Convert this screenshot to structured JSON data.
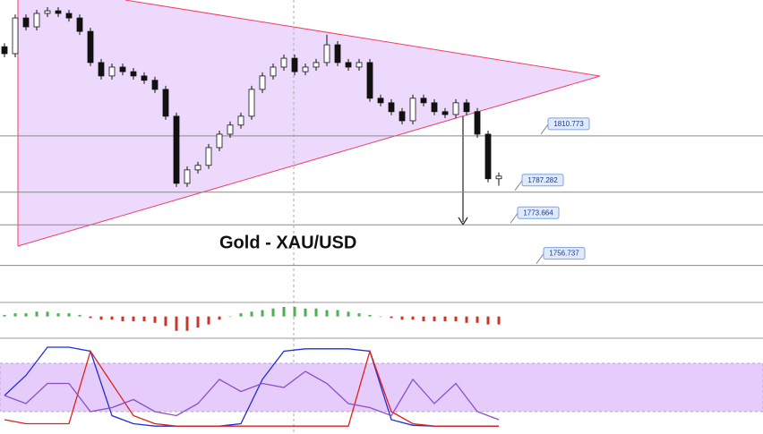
{
  "chart_data": {
    "type": "candlestick",
    "title": "Gold - XAU/USD",
    "ylim": [
      1748,
      1867.5
    ],
    "levels": [
      1810.773,
      1787.282,
      1773.664,
      1756.737
    ],
    "open": [
      1848.0,
      1845.1,
      1860.0,
      1856.3,
      1861.9,
      1863.0,
      1861.9,
      1860.0,
      1854.4,
      1841.4,
      1835.8,
      1839.5,
      1837.6,
      1835.8,
      1834.0,
      1830.2,
      1819.0,
      1791.0,
      1796.6,
      1798.5,
      1805.9,
      1811.5,
      1815.3,
      1819.0,
      1830.2,
      1835.8,
      1839.5,
      1843.2,
      1837.6,
      1839.5,
      1841.4,
      1848.8,
      1841.4,
      1839.5,
      1841.4,
      1826.5,
      1824.6,
      1820.9,
      1817.1,
      1826.5,
      1824.6,
      1820.9,
      1819.7,
      1824.6,
      1820.9,
      1811.5,
      1792.9
    ],
    "high": [
      1849.5,
      1861.5,
      1861.5,
      1863.4,
      1864.5,
      1864.5,
      1863.4,
      1861.5,
      1855.9,
      1842.9,
      1841.0,
      1841.0,
      1839.1,
      1837.3,
      1835.5,
      1831.7,
      1820.5,
      1798.1,
      1800.0,
      1807.4,
      1813.0,
      1816.8,
      1820.5,
      1831.7,
      1837.3,
      1841.0,
      1844.7,
      1844.7,
      1841.0,
      1842.9,
      1853.0,
      1850.3,
      1842.9,
      1842.9,
      1842.9,
      1828.0,
      1826.1,
      1822.4,
      1828.0,
      1828.0,
      1826.1,
      1822.4,
      1826.1,
      1826.1,
      1822.4,
      1813.0,
      1795.5
    ],
    "low": [
      1843.6,
      1843.6,
      1854.8,
      1854.8,
      1860.4,
      1860.4,
      1858.5,
      1852.9,
      1839.9,
      1834.3,
      1834.3,
      1836.1,
      1834.3,
      1832.5,
      1828.7,
      1817.5,
      1789.5,
      1789.5,
      1795.1,
      1797.0,
      1804.4,
      1810.0,
      1813.8,
      1817.5,
      1828.7,
      1834.3,
      1838.0,
      1836.1,
      1836.1,
      1838.0,
      1839.9,
      1839.9,
      1838.0,
      1838.0,
      1825.0,
      1823.1,
      1819.4,
      1815.6,
      1815.6,
      1823.1,
      1819.4,
      1818.2,
      1818.2,
      1819.4,
      1810.0,
      1791.4,
      1790.0
    ],
    "close": [
      1845.1,
      1860.0,
      1856.3,
      1861.9,
      1863.0,
      1861.9,
      1860.0,
      1854.4,
      1841.4,
      1835.8,
      1839.5,
      1837.6,
      1835.8,
      1834.0,
      1830.2,
      1819.0,
      1791.0,
      1796.6,
      1798.5,
      1805.9,
      1811.5,
      1815.3,
      1819.0,
      1830.2,
      1835.8,
      1839.5,
      1843.2,
      1837.6,
      1839.5,
      1841.4,
      1848.8,
      1841.4,
      1839.5,
      1841.4,
      1826.5,
      1824.6,
      1820.9,
      1817.1,
      1826.5,
      1824.6,
      1820.9,
      1819.7,
      1824.6,
      1820.9,
      1811.5,
      1792.9,
      1794.0
    ],
    "histogram": {
      "ylim": [
        -12,
        6
      ],
      "colors": [
        "#4caf50",
        "#c0392b"
      ],
      "values": [
        1,
        2,
        2,
        3,
        3,
        2,
        2,
        1,
        -1,
        -2,
        -2,
        -3,
        -3,
        -3,
        -4,
        -6,
        -9,
        -9,
        -7,
        -5,
        -2,
        0,
        2,
        3,
        4,
        5,
        6,
        6,
        5,
        5,
        4,
        4,
        3,
        2,
        1,
        0,
        -1,
        -2,
        -2,
        -3,
        -3,
        -3,
        -3,
        -4,
        -4,
        -5,
        -5
      ]
    },
    "oscillator": {
      "ylim": [
        0,
        100
      ],
      "band": [
        20,
        80
      ],
      "series": [
        {
          "color": "#1f2fd6",
          "values": [
            40,
            65,
            100,
            100,
            95,
            15,
            5,
            2,
            2,
            2,
            2,
            5,
            60,
            95,
            98,
            98,
            98,
            95,
            10,
            3,
            2,
            2,
            2,
            2
          ]
        },
        {
          "color": "#e0201c",
          "values": [
            10,
            5,
            5,
            5,
            95,
            55,
            15,
            5,
            2,
            2,
            2,
            2,
            2,
            2,
            2,
            2,
            2,
            95,
            20,
            5,
            2,
            2,
            2,
            2
          ]
        },
        {
          "color": "#8a4fc9",
          "values": [
            40,
            30,
            55,
            55,
            20,
            25,
            35,
            20,
            15,
            30,
            60,
            45,
            55,
            50,
            70,
            55,
            30,
            25,
            15,
            60,
            30,
            55,
            20,
            10
          ]
        }
      ]
    }
  }
}
